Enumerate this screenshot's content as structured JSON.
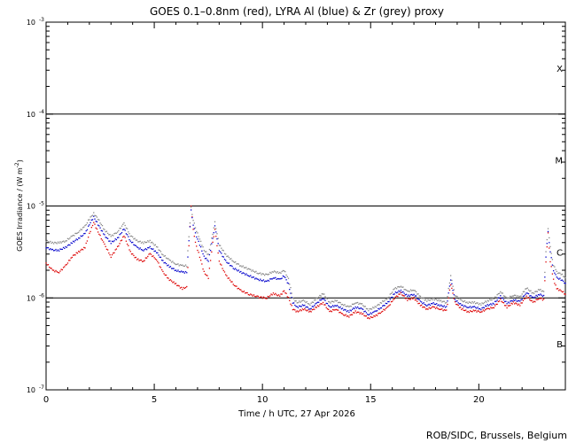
{
  "chart_data": {
    "type": "scatter",
    "title": "GOES 0.1–0.8nm (red), LYRA Al (blue) & Zr (grey) proxy",
    "xlabel": "Time / h UTC, 27 Apr 2026",
    "ylabel": "GOES Irradiance / (W m",
    "ylabel_sup": "-2",
    "ylabel_close": ")",
    "xlim": [
      0,
      24
    ],
    "ylim_exponents": [
      -7,
      -3
    ],
    "yscale": "log",
    "x_ticks": [
      "0",
      "5",
      "10",
      "15",
      "20"
    ],
    "x_tick_values": [
      0,
      5,
      10,
      15,
      20
    ],
    "y_tick_base": "10",
    "y_tick_exponents": [
      "-3",
      "-4",
      "-5",
      "-6",
      "-7"
    ],
    "flare_classes": [
      {
        "label": "X",
        "exp": -3.5
      },
      {
        "label": "M",
        "exp": -4.5
      },
      {
        "label": "C",
        "exp": -5.5
      },
      {
        "label": "B",
        "exp": -6.5
      }
    ],
    "threshold_lines": [
      -4,
      -5,
      -6
    ],
    "series": [
      {
        "name": "GOES 0.1–0.8nm",
        "color": "#dd0000",
        "x": [
          0.0,
          0.3,
          0.6,
          0.9,
          1.2,
          1.5,
          1.8,
          2.0,
          2.2,
          2.4,
          2.7,
          3.0,
          3.3,
          3.6,
          3.9,
          4.2,
          4.5,
          4.8,
          5.1,
          5.4,
          5.7,
          6.0,
          6.3,
          6.5,
          6.7,
          6.8,
          6.9,
          7.1,
          7.3,
          7.5,
          7.7,
          7.8,
          8.0,
          8.3,
          8.7,
          9.0,
          9.4,
          9.8,
          10.2,
          10.5,
          10.8,
          11.0,
          11.2,
          11.4,
          11.6,
          11.9,
          12.2,
          12.5,
          12.8,
          13.1,
          13.4,
          13.7,
          14.0,
          14.3,
          14.6,
          14.9,
          15.2,
          15.5,
          15.8,
          16.1,
          16.4,
          16.7,
          17.0,
          17.3,
          17.6,
          17.9,
          18.2,
          18.5,
          18.7,
          18.9,
          19.2,
          19.5,
          19.8,
          20.1,
          20.4,
          20.7,
          21.0,
          21.3,
          21.6,
          21.9,
          22.2,
          22.5,
          22.8,
          23.0,
          23.1,
          23.2,
          23.3,
          23.45,
          23.6,
          23.8,
          24.0
        ],
        "y_exp": [
          -5.62,
          -5.7,
          -5.72,
          -5.65,
          -5.55,
          -5.5,
          -5.45,
          -5.3,
          -5.18,
          -5.28,
          -5.42,
          -5.55,
          -5.45,
          -5.32,
          -5.5,
          -5.58,
          -5.6,
          -5.52,
          -5.58,
          -5.72,
          -5.8,
          -5.85,
          -5.9,
          -5.88,
          -5.0,
          -5.25,
          -5.4,
          -5.55,
          -5.72,
          -5.78,
          -5.4,
          -5.25,
          -5.6,
          -5.75,
          -5.86,
          -5.92,
          -5.96,
          -5.99,
          -6.0,
          -5.95,
          -5.98,
          -5.92,
          -6.0,
          -6.12,
          -6.15,
          -6.12,
          -6.15,
          -6.1,
          -6.05,
          -6.15,
          -6.12,
          -6.18,
          -6.2,
          -6.15,
          -6.17,
          -6.22,
          -6.2,
          -6.15,
          -6.1,
          -6.0,
          -5.95,
          -6.02,
          -6.0,
          -6.08,
          -6.12,
          -6.1,
          -6.12,
          -6.14,
          -5.85,
          -6.05,
          -6.12,
          -6.15,
          -6.14,
          -6.15,
          -6.12,
          -6.1,
          -6.02,
          -6.1,
          -6.05,
          -6.08,
          -5.98,
          -6.05,
          -6.0,
          -6.02,
          -5.6,
          -5.3,
          -5.6,
          -5.8,
          -5.9,
          -5.92,
          -5.96
        ]
      },
      {
        "name": "LYRA Al proxy",
        "color": "#0000cc",
        "x": [
          0.0,
          0.3,
          0.6,
          0.9,
          1.2,
          1.5,
          1.8,
          2.0,
          2.2,
          2.4,
          2.7,
          3.0,
          3.3,
          3.6,
          3.9,
          4.2,
          4.5,
          4.8,
          5.1,
          5.4,
          5.7,
          6.0,
          6.3,
          6.5,
          6.7,
          6.8,
          6.9,
          7.1,
          7.3,
          7.5,
          7.7,
          7.8,
          8.0,
          8.3,
          8.7,
          9.0,
          9.4,
          9.8,
          10.2,
          10.5,
          10.8,
          11.0,
          11.2,
          11.4,
          11.6,
          11.9,
          12.2,
          12.5,
          12.8,
          13.1,
          13.4,
          13.7,
          14.0,
          14.3,
          14.6,
          14.9,
          15.2,
          15.5,
          15.8,
          16.1,
          16.4,
          16.7,
          17.0,
          17.3,
          17.6,
          17.9,
          18.2,
          18.5,
          18.7,
          18.9,
          19.2,
          19.5,
          19.8,
          20.1,
          20.4,
          20.7,
          21.0,
          21.3,
          21.6,
          21.9,
          22.2,
          22.5,
          22.8,
          23.0,
          23.1,
          23.2,
          23.3,
          23.45,
          23.6,
          23.8,
          24.0
        ],
        "y_exp": [
          -5.45,
          -5.48,
          -5.48,
          -5.45,
          -5.4,
          -5.35,
          -5.3,
          -5.2,
          -5.12,
          -5.2,
          -5.32,
          -5.4,
          -5.35,
          -5.25,
          -5.38,
          -5.45,
          -5.48,
          -5.45,
          -5.5,
          -5.6,
          -5.66,
          -5.7,
          -5.72,
          -5.72,
          -5.05,
          -5.2,
          -5.3,
          -5.42,
          -5.55,
          -5.6,
          -5.35,
          -5.22,
          -5.48,
          -5.6,
          -5.68,
          -5.72,
          -5.76,
          -5.8,
          -5.82,
          -5.78,
          -5.8,
          -5.76,
          -5.85,
          -6.05,
          -6.1,
          -6.08,
          -6.12,
          -6.06,
          -6.0,
          -6.1,
          -6.08,
          -6.12,
          -6.15,
          -6.1,
          -6.12,
          -6.18,
          -6.15,
          -6.1,
          -6.05,
          -5.95,
          -5.92,
          -5.98,
          -5.96,
          -6.04,
          -6.08,
          -6.06,
          -6.08,
          -6.1,
          -5.8,
          -6.02,
          -6.08,
          -6.1,
          -6.1,
          -6.12,
          -6.08,
          -6.06,
          -5.98,
          -6.06,
          -6.02,
          -6.04,
          -5.94,
          -6.0,
          -5.96,
          -5.98,
          -5.55,
          -5.28,
          -5.5,
          -5.7,
          -5.78,
          -5.8,
          -5.84
        ]
      },
      {
        "name": "LYRA Zr proxy",
        "color": "#888888",
        "x": [
          0.0,
          0.3,
          0.6,
          0.9,
          1.2,
          1.5,
          1.8,
          2.0,
          2.2,
          2.4,
          2.7,
          3.0,
          3.3,
          3.6,
          3.9,
          4.2,
          4.5,
          4.8,
          5.1,
          5.4,
          5.7,
          6.0,
          6.3,
          6.5,
          6.7,
          6.8,
          6.9,
          7.1,
          7.3,
          7.5,
          7.7,
          7.8,
          8.0,
          8.3,
          8.7,
          9.0,
          9.4,
          9.8,
          10.2,
          10.5,
          10.8,
          11.0,
          11.2,
          11.4,
          11.6,
          11.9,
          12.2,
          12.5,
          12.8,
          13.1,
          13.4,
          13.7,
          14.0,
          14.3,
          14.6,
          14.9,
          15.2,
          15.5,
          15.8,
          16.1,
          16.4,
          16.7,
          17.0,
          17.3,
          17.6,
          17.9,
          18.2,
          18.5,
          18.7,
          18.9,
          19.2,
          19.5,
          19.8,
          20.1,
          20.4,
          20.7,
          21.0,
          21.3,
          21.6,
          21.9,
          22.2,
          22.5,
          22.8,
          23.0,
          23.1,
          23.2,
          23.3,
          23.45,
          23.6,
          23.8,
          24.0
        ],
        "y_exp": [
          -5.38,
          -5.4,
          -5.4,
          -5.38,
          -5.33,
          -5.28,
          -5.22,
          -5.14,
          -5.08,
          -5.14,
          -5.26,
          -5.33,
          -5.28,
          -5.19,
          -5.32,
          -5.38,
          -5.4,
          -5.38,
          -5.44,
          -5.53,
          -5.59,
          -5.63,
          -5.65,
          -5.65,
          -5.02,
          -5.15,
          -5.24,
          -5.36,
          -5.48,
          -5.53,
          -5.3,
          -5.18,
          -5.42,
          -5.53,
          -5.61,
          -5.65,
          -5.69,
          -5.73,
          -5.75,
          -5.71,
          -5.73,
          -5.7,
          -5.79,
          -6.0,
          -6.05,
          -6.03,
          -6.07,
          -6.01,
          -5.95,
          -6.05,
          -6.03,
          -6.07,
          -6.1,
          -6.05,
          -6.07,
          -6.13,
          -6.1,
          -6.05,
          -6.0,
          -5.9,
          -5.87,
          -5.93,
          -5.91,
          -5.99,
          -6.03,
          -6.01,
          -6.03,
          -6.05,
          -5.76,
          -5.97,
          -6.03,
          -6.05,
          -6.05,
          -6.07,
          -6.03,
          -6.01,
          -5.93,
          -6.01,
          -5.97,
          -5.99,
          -5.89,
          -5.95,
          -5.91,
          -5.93,
          -5.5,
          -5.24,
          -5.45,
          -5.64,
          -5.72,
          -5.74,
          -5.78
        ]
      }
    ]
  },
  "footer": {
    "credit": "ROB/SIDC, Brussels, Belgium"
  }
}
